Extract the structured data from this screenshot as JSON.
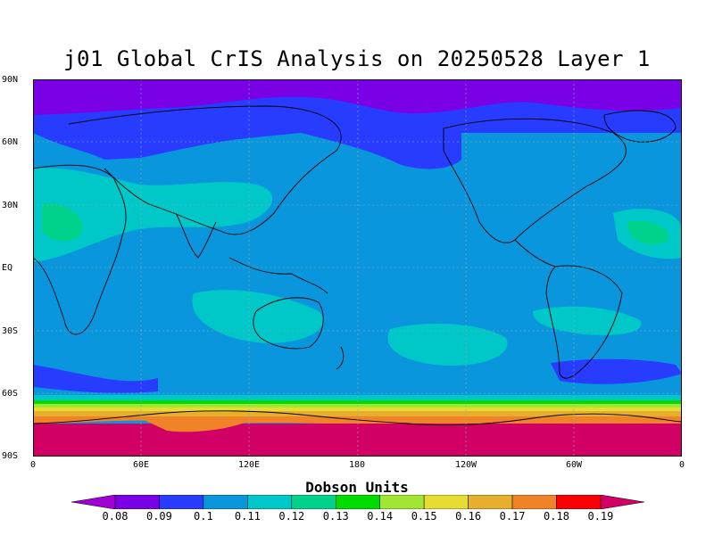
{
  "title": "j01 Global CrIS Analysis on 20250528 Layer 1",
  "lat_labels": [
    "90N",
    "60N",
    "30N",
    "EQ",
    "30S",
    "60S",
    "90S"
  ],
  "lon_labels": [
    "0",
    "60E",
    "120E",
    "180",
    "120W",
    "60W",
    "0"
  ],
  "colorbar": {
    "title": "Dobson Units",
    "ticks": [
      "0.08",
      "0.09",
      "0.1",
      "0.11",
      "0.12",
      "0.13",
      "0.14",
      "0.15",
      "0.16",
      "0.17",
      "0.18",
      "0.19"
    ],
    "colors": [
      "#a100d2",
      "#7a00e6",
      "#283cff",
      "#0a96dc",
      "#00c8c8",
      "#00d28c",
      "#00dc00",
      "#a0e632",
      "#e6dc32",
      "#e6af2d",
      "#f08228",
      "#fa0000",
      "#d20064"
    ]
  },
  "map": {
    "projection": "cylindrical, 0 to 360 longitude",
    "field": "ozone column (Dobson Units)"
  }
}
